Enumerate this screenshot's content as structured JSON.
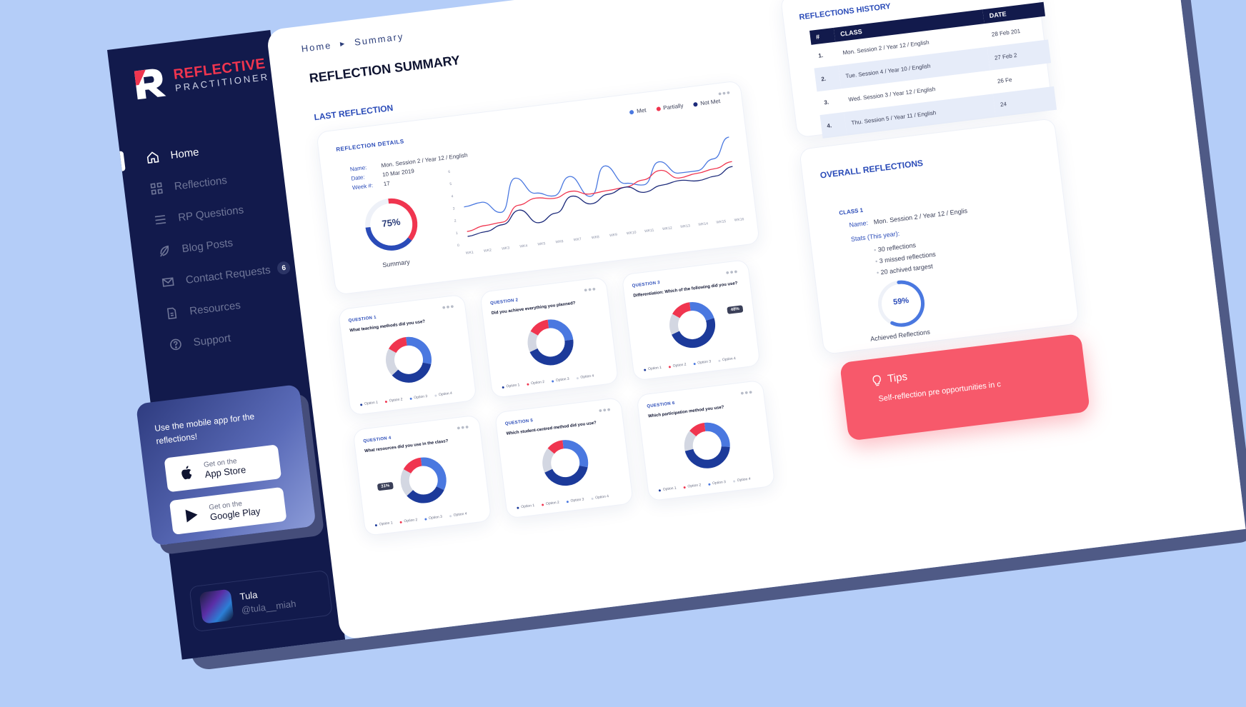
{
  "brand": {
    "title": "REFLECTIVE",
    "subtitle": "PRACTITIONER"
  },
  "sidebar": {
    "items": [
      {
        "label": "Home",
        "icon": "home-icon",
        "active": true
      },
      {
        "label": "Reflections",
        "icon": "grid-icon"
      },
      {
        "label": "RP Questions",
        "icon": "menu-icon"
      },
      {
        "label": "Blog Posts",
        "icon": "feather-icon"
      },
      {
        "label": "Contact Requests",
        "icon": "mail-icon",
        "badge": "6"
      },
      {
        "label": "Resources",
        "icon": "document-icon"
      },
      {
        "label": "Support",
        "icon": "help-icon"
      }
    ],
    "user": {
      "name": "Tula",
      "handle": "@tula__miah"
    }
  },
  "promo": {
    "text": "Use the mobile app for the reflections!",
    "apple": {
      "small": "Get on the",
      "big": "App Store"
    },
    "google": {
      "small": "Get on the",
      "big": "Google Play"
    }
  },
  "breadcrumb": {
    "home": "Home",
    "current": "Summary"
  },
  "page_title": "REFLECTION SUMMARY",
  "last_reflection": {
    "section_title": "LAST REFLECTION",
    "heading": "REFLECTION DETAILS",
    "meta": [
      {
        "key": "Name:",
        "value": "Mon. Session 2 / Year 12 / English"
      },
      {
        "key": "Date:",
        "value": "10 Mar 2019"
      },
      {
        "key": "Week #:",
        "value": "17"
      }
    ],
    "summary_pct": "75%",
    "summary_value": 0.75,
    "summary_label": "Summary",
    "legend": [
      {
        "name": "Met",
        "color": "#4a78e0"
      },
      {
        "name": "Partially",
        "color": "#f0354f"
      },
      {
        "name": "Not Met",
        "color": "#1c2a7a"
      }
    ]
  },
  "chart_data": {
    "type": "line",
    "x": [
      "WK1",
      "WK2",
      "WK3",
      "WK4",
      "WK5",
      "WK6",
      "WK7",
      "WK8",
      "WK9",
      "WK10",
      "WK11",
      "WK12",
      "WK13",
      "WK14",
      "WK15",
      "WK16"
    ],
    "ylim": [
      0,
      6
    ],
    "yticks": [
      0,
      1,
      2,
      3,
      4,
      5,
      6
    ],
    "series": [
      {
        "name": "Met",
        "color": "#4a78e0",
        "values": [
          3.0,
          3.2,
          2.2,
          4.8,
          3.4,
          3.0,
          4.4,
          2.6,
          4.9,
          3.3,
          3.0,
          4.7,
          3.6,
          3.6,
          4.4,
          6.0
        ]
      },
      {
        "name": "Partially",
        "color": "#f0354f",
        "values": [
          1.0,
          1.3,
          1.4,
          2.6,
          3.0,
          2.8,
          3.2,
          2.8,
          2.9,
          3.0,
          3.4,
          4.0,
          3.2,
          3.4,
          3.6,
          4.0
        ]
      },
      {
        "name": "Not Met",
        "color": "#1c2a7a",
        "values": [
          0.6,
          0.8,
          1.2,
          2.2,
          1.0,
          1.6,
          2.8,
          2.0,
          2.6,
          3.0,
          2.4,
          2.8,
          3.0,
          2.8,
          3.0,
          3.6
        ]
      }
    ]
  },
  "questions": [
    {
      "label": "QUESTION 1",
      "text": "What teaching methods did you use?",
      "slices": [
        0.35,
        0.15,
        0.3,
        0.2
      ],
      "callout": ""
    },
    {
      "label": "QUESTION 2",
      "text": "Did you achieve everything you planned?",
      "slices": [
        0.45,
        0.15,
        0.25,
        0.15
      ],
      "callout": ""
    },
    {
      "label": "QUESTION 3",
      "text": "Differentiation: Which of the following did you use?",
      "slices": [
        0.48,
        0.15,
        0.22,
        0.15
      ],
      "callout": "48%"
    },
    {
      "label": "QUESTION 4",
      "text": "What resources did you use in the class?",
      "slices": [
        0.31,
        0.15,
        0.34,
        0.2
      ],
      "callout": "31%"
    },
    {
      "label": "QUESTION 5",
      "text": "Which student-centred method did you use?",
      "slices": [
        0.4,
        0.12,
        0.3,
        0.18
      ],
      "callout": ""
    },
    {
      "label": "QUESTION 6",
      "text": "Which participation method you use?",
      "slices": [
        0.45,
        0.12,
        0.28,
        0.15
      ],
      "callout": ""
    }
  ],
  "question_options": [
    "Option 1",
    "Option 2",
    "Option 3",
    "Option 4"
  ],
  "question_colors": [
    "#1c3a9a",
    "#f0354f",
    "#4a78e0",
    "#d3d7e2"
  ],
  "history": {
    "title": "REFLECTIONS HISTORY",
    "columns": [
      "#",
      "CLASS",
      "DATE"
    ],
    "rows": [
      {
        "num": "1.",
        "class": "Mon. Session 2 / Year 12 / English",
        "date": "28 Feb 201"
      },
      {
        "num": "2.",
        "class": "Tue. Session 4 / Year 10 / English",
        "date": "27 Feb 2"
      },
      {
        "num": "3.",
        "class": "Wed. Session 3 / Year 12 / English",
        "date": "26 Fe"
      },
      {
        "num": "4.",
        "class": "Thu. Session 5 / Year 11 / English",
        "date": "24"
      }
    ]
  },
  "overall": {
    "title": "OVERALL REFLECTIONS",
    "class_label": "CLASS 1",
    "name_key": "Name:",
    "name_value": "Mon. Session 2 / Year 12 / Englis",
    "stats_label": "Stats (This year):",
    "stats": [
      "30 reflections",
      "3 missed reflections",
      "20 achived targest"
    ],
    "pct": "59%",
    "value": 0.59,
    "achieved_label": "Achieved Reflections"
  },
  "tips": {
    "title": "Tips",
    "text": "Self-reflection pre opportunities in c"
  }
}
